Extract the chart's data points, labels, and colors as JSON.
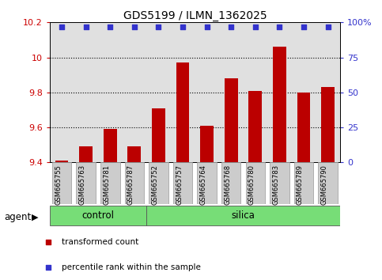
{
  "title": "GDS5199 / ILMN_1362025",
  "samples": [
    "GSM665755",
    "GSM665763",
    "GSM665781",
    "GSM665787",
    "GSM665752",
    "GSM665757",
    "GSM665764",
    "GSM665768",
    "GSM665780",
    "GSM665783",
    "GSM665789",
    "GSM665790"
  ],
  "bar_values": [
    9.41,
    9.49,
    9.59,
    9.49,
    9.71,
    9.97,
    9.61,
    9.88,
    9.81,
    10.06,
    9.8,
    9.83
  ],
  "bar_color": "#bb0000",
  "dot_color": "#3333cc",
  "ylim_left": [
    9.4,
    10.2
  ],
  "ylim_right": [
    0,
    100
  ],
  "yticks_left": [
    9.4,
    9.6,
    9.8,
    10.0,
    10.2
  ],
  "yticks_right": [
    0,
    25,
    50,
    75,
    100
  ],
  "ytick_labels_left": [
    "9.4",
    "9.6",
    "9.8",
    "10",
    "10.2"
  ],
  "ytick_labels_right": [
    "0",
    "25",
    "50",
    "75",
    "100%"
  ],
  "grid_values": [
    9.6,
    9.8,
    10.0
  ],
  "group_labels": [
    "control",
    "silica"
  ],
  "group_ranges": [
    [
      0,
      4
    ],
    [
      4,
      12
    ]
  ],
  "group_colors": [
    "#77dd77",
    "#77dd77"
  ],
  "agent_label": "agent",
  "legend_items": [
    {
      "label": "transformed count",
      "color": "#bb0000"
    },
    {
      "label": "percentile rank within the sample",
      "color": "#3333cc"
    }
  ],
  "background_color": "#ffffff",
  "plot_bg_color": "#e0e0e0",
  "bar_bottom": 9.4,
  "dot_percentile": 97,
  "n_samples": 12,
  "n_control": 4,
  "n_silica": 8
}
